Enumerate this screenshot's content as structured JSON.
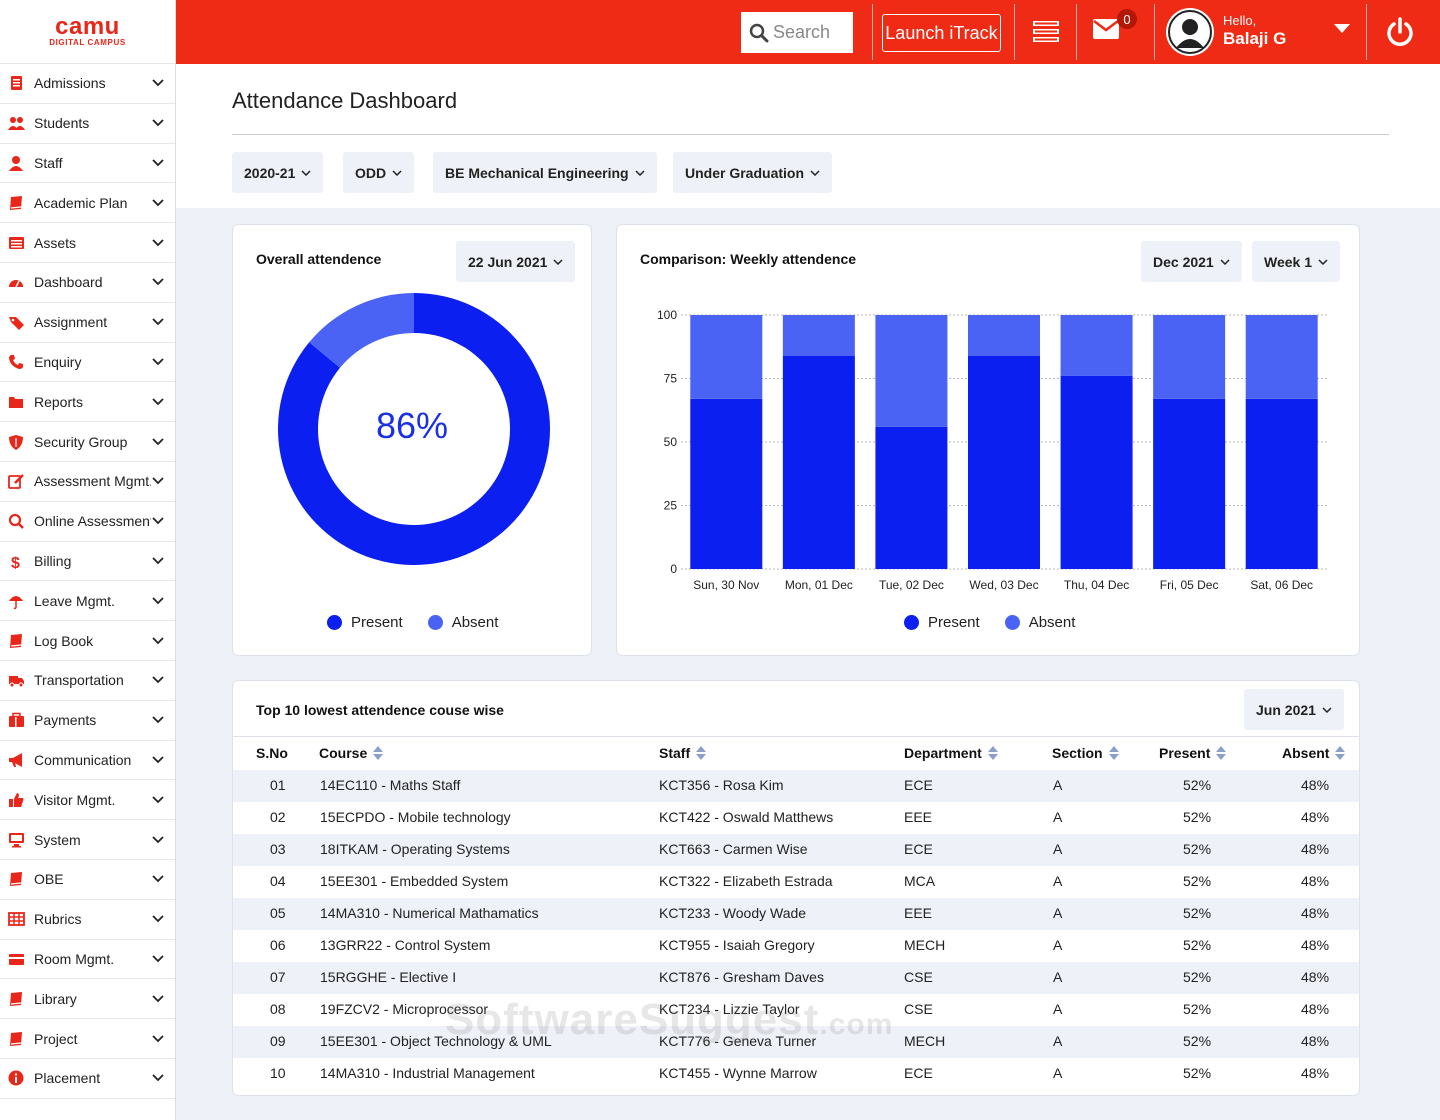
{
  "brand": {
    "name": "camu",
    "tagline": "DIGITAL CAMPUS",
    "color": "#e8261a"
  },
  "topbar": {
    "color": "#ef2a15",
    "search_placeholder": "Search",
    "launch_label": "Launch iTrack",
    "mail_count": "0",
    "greeting": "Hello,",
    "user_name": "Balaji G"
  },
  "sidebar": {
    "items": [
      {
        "label": "Admissions",
        "icon": "document-icon"
      },
      {
        "label": "Students",
        "icon": "users-icon"
      },
      {
        "label": "Staff",
        "icon": "user-icon"
      },
      {
        "label": "Academic Plan",
        "icon": "book-icon"
      },
      {
        "label": "Assets",
        "icon": "list-icon"
      },
      {
        "label": "Dashboard",
        "icon": "dashboard-icon"
      },
      {
        "label": "Assignment",
        "icon": "tag-icon"
      },
      {
        "label": "Enquiry",
        "icon": "phone-icon"
      },
      {
        "label": "Reports",
        "icon": "folder-icon"
      },
      {
        "label": "Security Group",
        "icon": "shield-icon"
      },
      {
        "label": "Assessment Mgmt.",
        "icon": "edit-icon"
      },
      {
        "label": "Online Assessment",
        "icon": "search-icon"
      },
      {
        "label": "Billing",
        "icon": "dollar-icon"
      },
      {
        "label": "Leave Mgmt.",
        "icon": "umbrella-icon"
      },
      {
        "label": "Log Book",
        "icon": "book-icon"
      },
      {
        "label": "Transportation",
        "icon": "truck-icon"
      },
      {
        "label": "Payments",
        "icon": "briefcase-icon"
      },
      {
        "label": "Communication",
        "icon": "megaphone-icon"
      },
      {
        "label": "Visitor Mgmt.",
        "icon": "thumbs-up-icon"
      },
      {
        "label": "System",
        "icon": "monitor-icon"
      },
      {
        "label": "OBE",
        "icon": "book-icon"
      },
      {
        "label": "Rubrics",
        "icon": "table-icon"
      },
      {
        "label": "Room Mgmt.",
        "icon": "card-icon"
      },
      {
        "label": "Library",
        "icon": "book-icon"
      },
      {
        "label": "Project",
        "icon": "book-icon"
      },
      {
        "label": "Placement",
        "icon": "info-icon"
      }
    ]
  },
  "page": {
    "title": "Attendance Dashboard",
    "filters": [
      "2020-21",
      "ODD",
      "BE Mechanical Engineering",
      "Under Graduation"
    ]
  },
  "overall": {
    "title": "Overall attendence",
    "date": "22 Jun 2021",
    "center_label": "86%",
    "legend": [
      "Present",
      "Absent"
    ]
  },
  "weekly": {
    "title": "Comparison: Weekly attendence",
    "month": "Dec 2021",
    "week": "Week 1",
    "legend": [
      "Present",
      "Absent"
    ]
  },
  "chart_data": [
    {
      "type": "pie",
      "title": "Overall attendence",
      "categories": [
        "Present",
        "Absent"
      ],
      "values": [
        86,
        14
      ],
      "colors": [
        "#0a1ff0",
        "#4a63f5"
      ]
    },
    {
      "type": "bar",
      "title": "Comparison: Weekly attendence",
      "stacked": true,
      "categories": [
        "Sun, 30 Nov",
        "Mon, 01 Dec",
        "Tue, 02 Dec",
        "Wed, 03 Dec",
        "Thu, 04 Dec",
        "Fri, 05 Dec",
        "Sat, 06 Dec"
      ],
      "series": [
        {
          "name": "Present",
          "values": [
            67,
            84,
            56,
            84,
            76,
            67,
            67
          ],
          "color": "#0a1ff0"
        },
        {
          "name": "Absent",
          "values": [
            33,
            16,
            44,
            16,
            24,
            33,
            33
          ],
          "color": "#4a63f5"
        }
      ],
      "ylim": [
        0,
        100
      ],
      "yticks": [
        0,
        25,
        50,
        75,
        100
      ],
      "grid": true
    }
  ],
  "table": {
    "title": "Top 10 lowest attendence couse wise",
    "month": "Jun 2021",
    "columns": [
      "S.No",
      "Course",
      "Staff",
      "Department",
      "Section",
      "Present",
      "Absent"
    ],
    "rows": [
      [
        "01",
        "14EC110 - Maths Staff",
        "KCT356 - Rosa Kim",
        "ECE",
        "A",
        "52%",
        "48%"
      ],
      [
        "02",
        "15ECPDO - Mobile technology",
        "KCT422 - Oswald Matthews",
        "EEE",
        "A",
        "52%",
        "48%"
      ],
      [
        "03",
        "18ITKAM - Operating Systems",
        "KCT663 - Carmen Wise",
        "ECE",
        "A",
        "52%",
        "48%"
      ],
      [
        "04",
        "15EE301 - Embedded System",
        "KCT322 - Elizabeth Estrada",
        "MCA",
        "A",
        "52%",
        "48%"
      ],
      [
        "05",
        "14MA310 - Numerical Mathamatics",
        "KCT233 - Woody Wade",
        "EEE",
        "A",
        "52%",
        "48%"
      ],
      [
        "06",
        "13GRR22 - Control System",
        "KCT955 - Isaiah Gregory",
        "MECH",
        "A",
        "52%",
        "48%"
      ],
      [
        "07",
        "15RGGHE - Elective I",
        "KCT876 - Gresham Daves",
        "CSE",
        "A",
        "52%",
        "48%"
      ],
      [
        "08",
        "19FZCV2 - Microprocessor",
        "KCT234 - Lizzie Taylor",
        "CSE",
        "A",
        "52%",
        "48%"
      ],
      [
        "09",
        "15EE301 - Object Technology & UML",
        "KCT776 - Geneva Turner",
        "MECH",
        "A",
        "52%",
        "48%"
      ],
      [
        "10",
        "14MA310 - Industrial Management",
        "KCT455 - Wynne Marrow",
        "ECE",
        "A",
        "52%",
        "48%"
      ]
    ]
  },
  "watermark": {
    "main": "SoftwareSuggest",
    "suffix": ".com"
  }
}
